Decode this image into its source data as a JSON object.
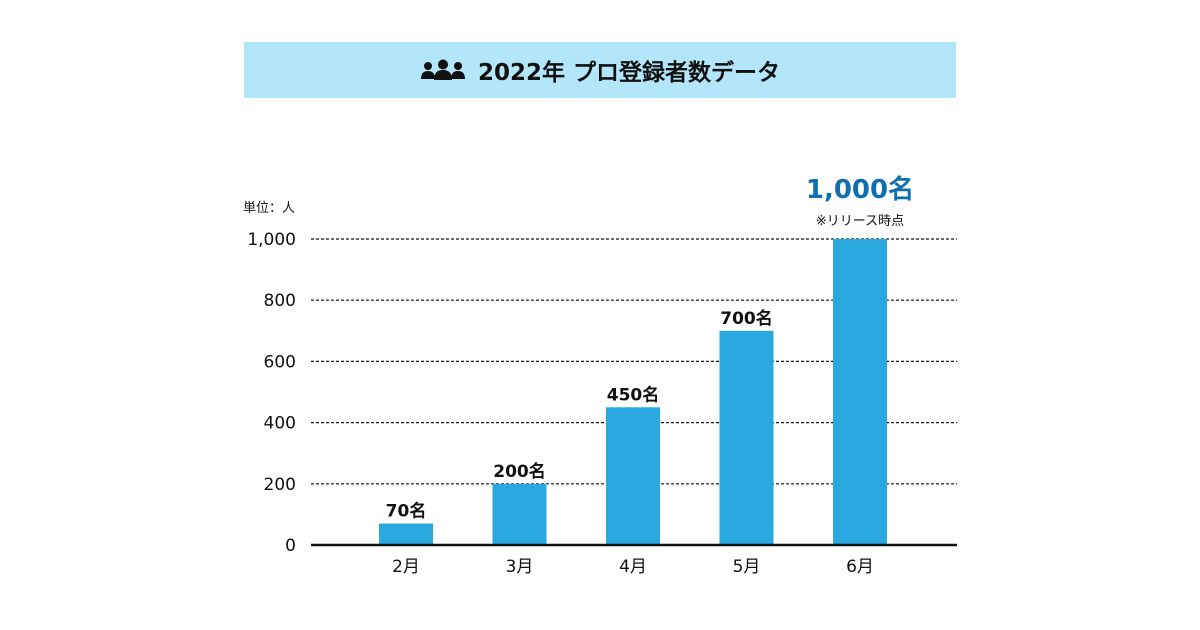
{
  "title": {
    "text": "2022年 プロ登録者数データ",
    "icon": "people-group-icon",
    "banner_color": "#b3e6fa"
  },
  "chart_data": {
    "type": "bar",
    "title": "2022年 プロ登録者数データ",
    "unit_label": "単位：人",
    "categories": [
      "2月",
      "3月",
      "4月",
      "5月",
      "6月"
    ],
    "values": [
      70,
      200,
      450,
      700,
      1000
    ],
    "value_labels": [
      "70名",
      "200名",
      "450名",
      "700名",
      "1,000名"
    ],
    "ylim": [
      0,
      1000
    ],
    "yticks": [
      "0",
      "200",
      "400",
      "600",
      "800",
      "1,000"
    ],
    "ytick_values": [
      0,
      200,
      400,
      600,
      800,
      1000
    ],
    "grid": "dashed horizontal",
    "bar_color": "#29a9e0",
    "highlight": {
      "index": 4,
      "color": "#0f6fae",
      "note": "※リリース時点"
    }
  }
}
